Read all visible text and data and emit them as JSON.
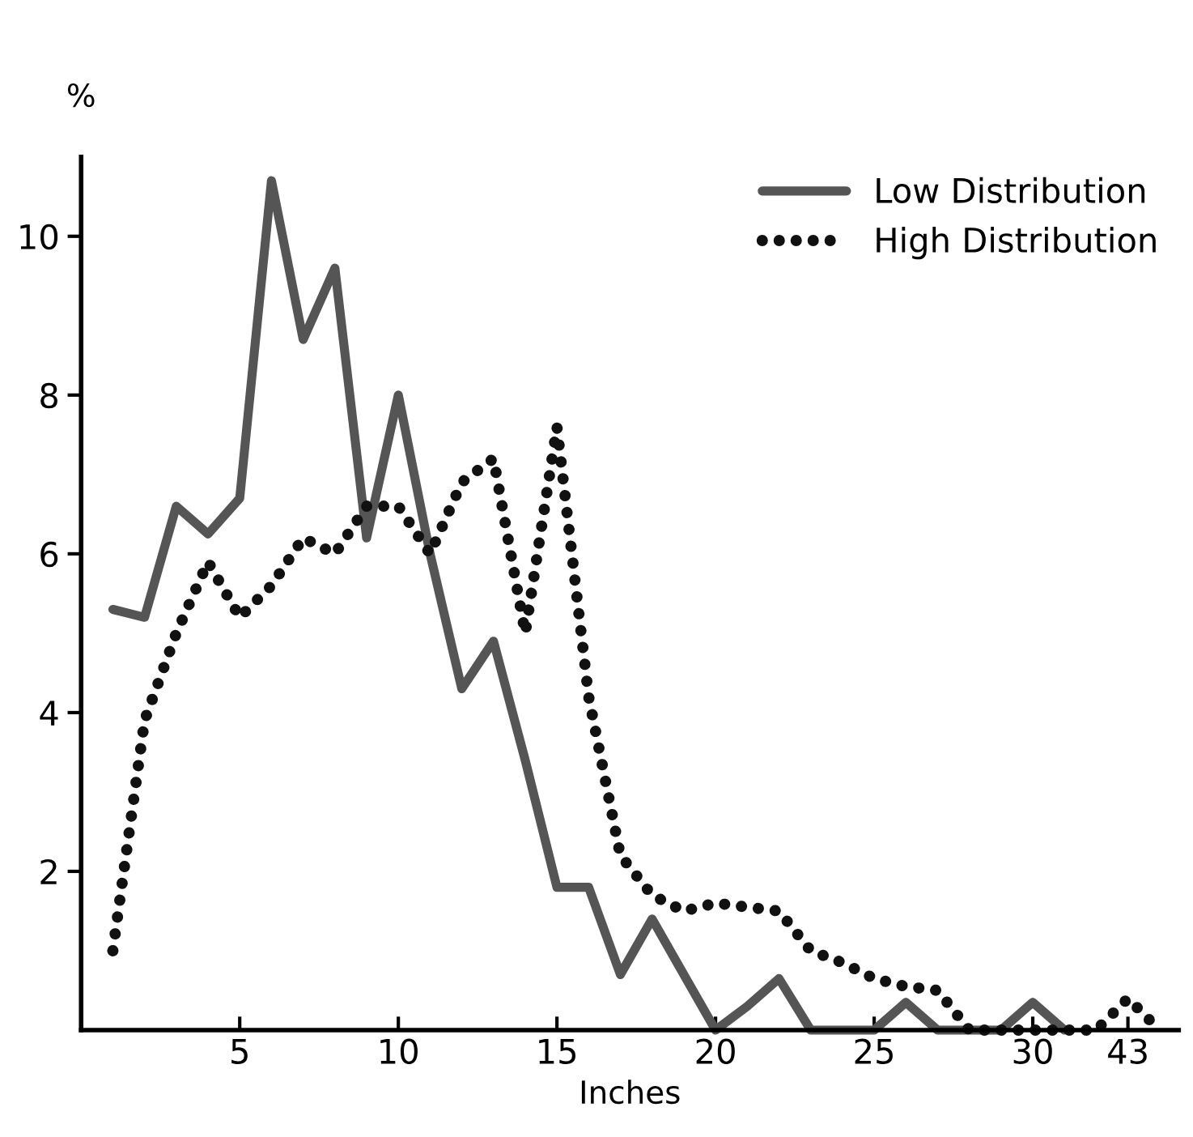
{
  "chart_data": {
    "type": "line",
    "xlabel": "Inches",
    "ylabel": "%",
    "ylim": [
      0,
      11
    ],
    "yticks": [
      2,
      4,
      6,
      8,
      10
    ],
    "grid": false,
    "legend": "top right",
    "marker": "none",
    "categories": [
      null,
      null,
      null,
      null,
      "5",
      null,
      null,
      null,
      null,
      "10",
      null,
      null,
      null,
      null,
      "15",
      null,
      null,
      null,
      null,
      "20",
      null,
      null,
      null,
      null,
      "25",
      null,
      null,
      null,
      null,
      "30",
      null,
      null,
      "43",
      null
    ],
    "series": [
      {
        "name": "Low Distribution",
        "color": "#555555",
        "line_style": "solid",
        "values": [
          5.3,
          5.2,
          6.6,
          6.25,
          6.7,
          10.7,
          8.7,
          9.6,
          6.2,
          8.0,
          6.0,
          4.3,
          4.9,
          3.4,
          1.8,
          1.8,
          0.7,
          1.4,
          0.7,
          0,
          0.3,
          0.65,
          0,
          0,
          0,
          0.35,
          0,
          0,
          0,
          0.35,
          0,
          null,
          null,
          null
        ]
      },
      {
        "name": "High Distribution",
        "color": "#111111",
        "line_style": "dotted",
        "values": [
          1.0,
          3.9,
          5.0,
          5.9,
          5.2,
          5.6,
          6.2,
          6.0,
          6.6,
          6.6,
          6.0,
          6.9,
          7.2,
          5.0,
          7.6,
          4.2,
          2.2,
          1.7,
          1.5,
          1.6,
          1.55,
          1.5,
          1.0,
          0.85,
          0.65,
          0.55,
          0.5,
          0,
          0,
          0,
          0,
          0,
          0.4,
          0
        ]
      }
    ]
  }
}
